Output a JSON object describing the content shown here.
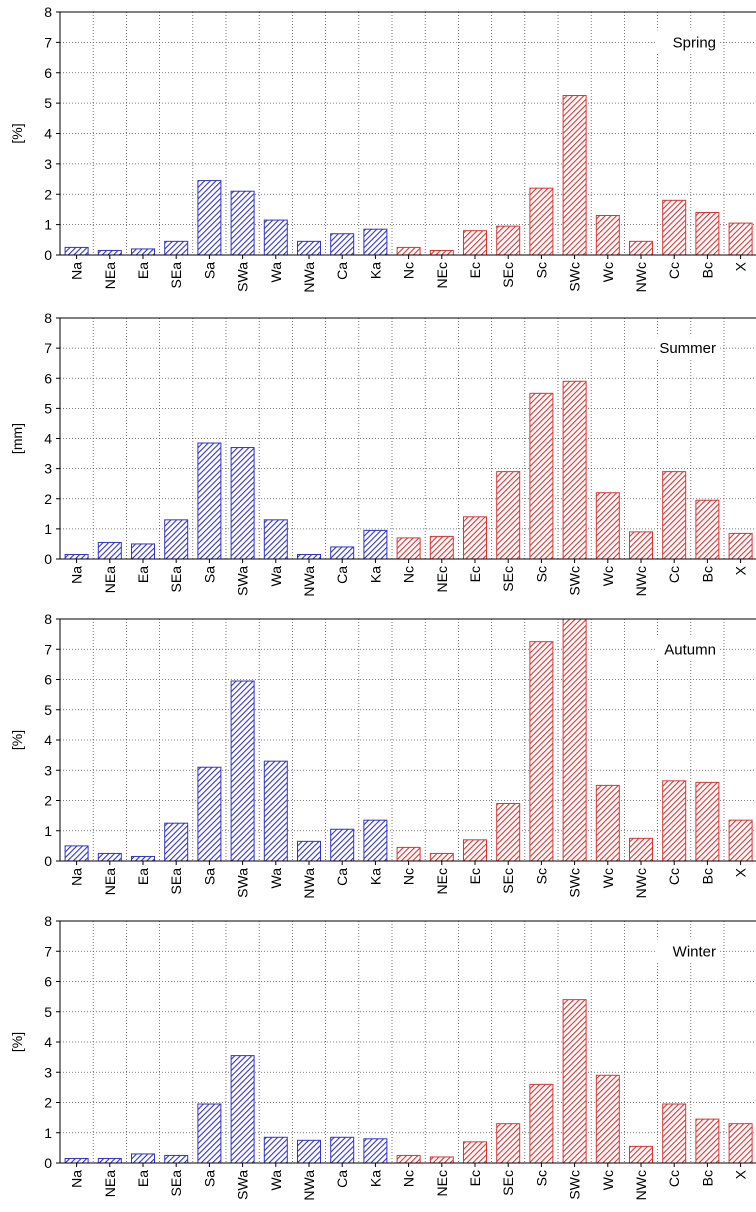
{
  "colors": {
    "anticyclonic": "#3333cc",
    "cyclonic": "#dd3333",
    "grid": "#555555",
    "axis": "#000000"
  },
  "chart_data": [
    {
      "type": "bar",
      "title": "Spring",
      "ylabel": "[%]",
      "ylim": [
        0,
        8
      ],
      "yticks": [
        0,
        1,
        2,
        3,
        4,
        5,
        6,
        7,
        8
      ],
      "grid": true,
      "categories": [
        "Na",
        "NEa",
        "Ea",
        "SEa",
        "Sa",
        "SWa",
        "Wa",
        "NWa",
        "Ca",
        "Ka",
        "Nc",
        "NEc",
        "Ec",
        "SEc",
        "Sc",
        "SWc",
        "Wc",
        "NWc",
        "Cc",
        "Bc",
        "X"
      ],
      "values": [
        0.25,
        0.15,
        0.2,
        0.45,
        2.45,
        2.1,
        1.15,
        0.45,
        0.7,
        0.85,
        0.25,
        0.15,
        0.8,
        0.95,
        2.2,
        5.25,
        1.3,
        0.45,
        1.8,
        1.4,
        1.05
      ]
    },
    {
      "type": "bar",
      "title": "Summer",
      "ylabel": "[mm]",
      "ylim": [
        0,
        8
      ],
      "yticks": [
        0,
        1,
        2,
        3,
        4,
        5,
        6,
        7,
        8
      ],
      "grid": true,
      "categories": [
        "Na",
        "NEa",
        "Ea",
        "SEa",
        "Sa",
        "SWa",
        "Wa",
        "NWa",
        "Ca",
        "Ka",
        "Nc",
        "NEc",
        "Ec",
        "SEc",
        "Sc",
        "SWc",
        "Wc",
        "NWc",
        "Cc",
        "Bc",
        "X"
      ],
      "values": [
        0.15,
        0.55,
        0.5,
        1.3,
        3.85,
        3.7,
        1.3,
        0.15,
        0.4,
        0.95,
        0.7,
        0.75,
        1.4,
        2.9,
        5.5,
        5.9,
        2.2,
        0.9,
        2.9,
        1.95,
        0.85
      ]
    },
    {
      "type": "bar",
      "title": "Autumn",
      "ylabel": "[%]",
      "ylim": [
        0,
        8
      ],
      "yticks": [
        0,
        1,
        2,
        3,
        4,
        5,
        6,
        7,
        8
      ],
      "grid": true,
      "categories": [
        "Na",
        "NEa",
        "Ea",
        "SEa",
        "Sa",
        "SWa",
        "Wa",
        "NWa",
        "Ca",
        "Ka",
        "Nc",
        "NEc",
        "Ec",
        "SEc",
        "Sc",
        "SWc",
        "Wc",
        "NWc",
        "Cc",
        "Bc",
        "X"
      ],
      "values": [
        0.5,
        0.25,
        0.15,
        1.25,
        3.1,
        5.95,
        3.3,
        0.65,
        1.05,
        1.35,
        0.45,
        0.25,
        0.7,
        1.9,
        7.25,
        8.0,
        2.5,
        0.75,
        2.65,
        2.6,
        1.35
      ]
    },
    {
      "type": "bar",
      "title": "Winter",
      "ylabel": "[%]",
      "ylim": [
        0,
        8
      ],
      "yticks": [
        0,
        1,
        2,
        3,
        4,
        5,
        6,
        7,
        8
      ],
      "grid": true,
      "categories": [
        "Na",
        "NEa",
        "Ea",
        "SEa",
        "Sa",
        "SWa",
        "Wa",
        "NWa",
        "Ca",
        "Ka",
        "Nc",
        "NEc",
        "Ec",
        "SEc",
        "Sc",
        "SWc",
        "Wc",
        "NWc",
        "Cc",
        "Bc",
        "X"
      ],
      "values": [
        0.15,
        0.15,
        0.3,
        0.25,
        1.95,
        3.55,
        0.85,
        0.75,
        0.85,
        0.8,
        0.25,
        0.2,
        0.7,
        1.3,
        2.6,
        5.4,
        2.9,
        0.55,
        1.95,
        1.45,
        1.3
      ]
    }
  ]
}
